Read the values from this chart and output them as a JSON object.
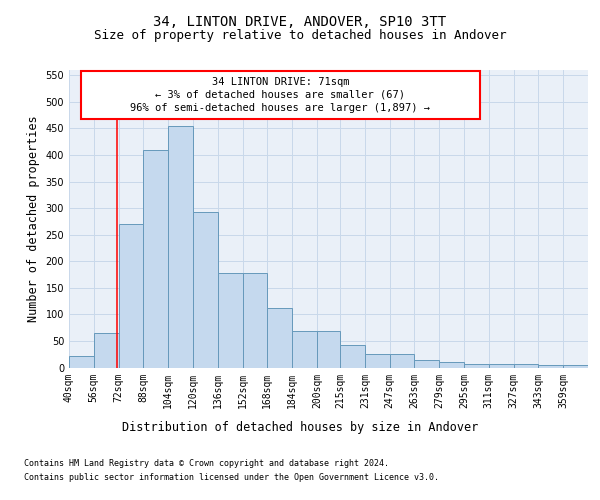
{
  "title_line1": "34, LINTON DRIVE, ANDOVER, SP10 3TT",
  "title_line2": "Size of property relative to detached houses in Andover",
  "xlabel": "Distribution of detached houses by size in Andover",
  "ylabel": "Number of detached properties",
  "footer_line1": "Contains HM Land Registry data © Crown copyright and database right 2024.",
  "footer_line2": "Contains public sector information licensed under the Open Government Licence v3.0.",
  "categories": [
    "40sqm",
    "56sqm",
    "72sqm",
    "88sqm",
    "104sqm",
    "120sqm",
    "136sqm",
    "152sqm",
    "168sqm",
    "184sqm",
    "200sqm",
    "215sqm",
    "231sqm",
    "247sqm",
    "263sqm",
    "279sqm",
    "295sqm",
    "311sqm",
    "327sqm",
    "343sqm",
    "359sqm"
  ],
  "bin_edges": [
    40,
    56,
    72,
    88,
    104,
    120,
    136,
    152,
    168,
    184,
    200,
    215,
    231,
    247,
    263,
    279,
    295,
    311,
    327,
    343,
    359,
    375
  ],
  "bar_heights": [
    22,
    65,
    270,
    410,
    455,
    292,
    178,
    178,
    112,
    68,
    68,
    43,
    25,
    25,
    14,
    11,
    6,
    7,
    7,
    4,
    4
  ],
  "bar_facecolor": "#c5d9ee",
  "bar_edgecolor": "#6699bb",
  "bar_linewidth": 0.7,
  "property_line_x": 71,
  "annotation_line1": "34 LINTON DRIVE: 71sqm",
  "annotation_line2": "← 3% of detached houses are smaller (67)",
  "annotation_line3": "96% of semi-detached houses are larger (1,897) →",
  "ann_box_color": "#ff0000",
  "grid_color": "#c8d8ea",
  "background_color": "#eaf0f8",
  "ylim": [
    0,
    560
  ],
  "xlim": [
    40,
    375
  ],
  "yticks": [
    0,
    50,
    100,
    150,
    200,
    250,
    300,
    350,
    400,
    450,
    500,
    550
  ],
  "title_fontsize": 10,
  "subtitle_fontsize": 9,
  "axis_label_fontsize": 8.5,
  "tick_fontsize": 7,
  "annotation_fontsize": 7.5,
  "footer_fontsize": 6
}
